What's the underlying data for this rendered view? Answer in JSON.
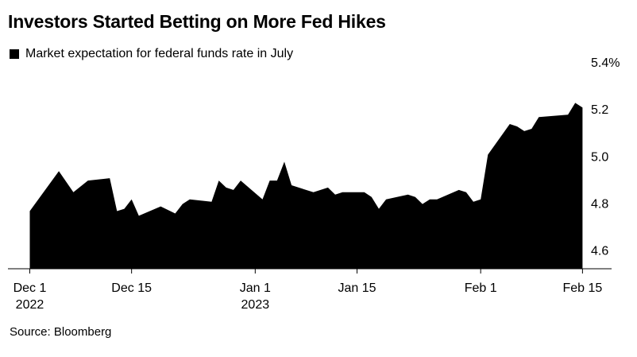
{
  "title": "Investors Started Betting on More Fed Hikes",
  "legend": {
    "label": "Market expectation for federal funds rate in July"
  },
  "source": "Source: Bloomberg",
  "chart_data": {
    "type": "area",
    "series_color": "#000000",
    "ylim": [
      4.6,
      5.4
    ],
    "yticks": [
      "4.6",
      "4.8",
      "5.0",
      "5.2",
      "5.4%"
    ],
    "ytick_values": [
      4.6,
      4.8,
      5.0,
      5.2,
      5.4
    ],
    "xticks": [
      {
        "day": 0,
        "label": "Dec 1",
        "sublabel": "2022"
      },
      {
        "day": 14,
        "label": "Dec 15",
        "sublabel": ""
      },
      {
        "day": 31,
        "label": "Jan 1",
        "sublabel": "2023"
      },
      {
        "day": 45,
        "label": "Jan 15",
        "sublabel": ""
      },
      {
        "day": 62,
        "label": "Feb 1",
        "sublabel": ""
      },
      {
        "day": 76,
        "label": "Feb 15",
        "sublabel": ""
      }
    ],
    "xlim": [
      -3,
      80
    ],
    "points": [
      [
        0,
        4.8
      ],
      [
        4,
        4.97
      ],
      [
        6,
        4.88
      ],
      [
        8,
        4.93
      ],
      [
        11,
        4.94
      ],
      [
        12,
        4.8
      ],
      [
        13,
        4.81
      ],
      [
        14,
        4.85
      ],
      [
        15,
        4.78
      ],
      [
        18,
        4.82
      ],
      [
        20,
        4.79
      ],
      [
        21,
        4.83
      ],
      [
        22,
        4.85
      ],
      [
        25,
        4.84
      ],
      [
        26,
        4.93
      ],
      [
        27,
        4.9
      ],
      [
        28,
        4.89
      ],
      [
        29,
        4.93
      ],
      [
        32,
        4.85
      ],
      [
        33,
        4.93
      ],
      [
        34,
        4.93
      ],
      [
        35,
        5.01
      ],
      [
        36,
        4.91
      ],
      [
        39,
        4.88
      ],
      [
        41,
        4.9
      ],
      [
        42,
        4.87
      ],
      [
        43,
        4.88
      ],
      [
        46,
        4.88
      ],
      [
        47,
        4.86
      ],
      [
        48,
        4.81
      ],
      [
        49,
        4.85
      ],
      [
        52,
        4.87
      ],
      [
        53,
        4.86
      ],
      [
        54,
        4.83
      ],
      [
        55,
        4.85
      ],
      [
        56,
        4.85
      ],
      [
        59,
        4.89
      ],
      [
        60,
        4.88
      ],
      [
        61,
        4.84
      ],
      [
        62,
        4.85
      ],
      [
        63,
        5.04
      ],
      [
        66,
        5.17
      ],
      [
        67,
        5.16
      ],
      [
        68,
        5.14
      ],
      [
        69,
        5.15
      ],
      [
        70,
        5.2
      ],
      [
        74,
        5.21
      ],
      [
        75,
        5.26
      ],
      [
        76,
        5.24
      ]
    ]
  }
}
